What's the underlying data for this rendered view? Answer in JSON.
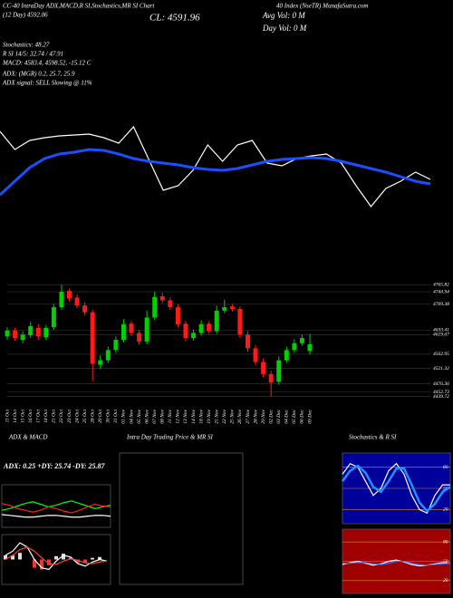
{
  "header": {
    "line1": "CC-40 IntraDay ADX,MACD,R SI,Stochastics,MR SI Chart",
    "source": "40 Index (NseTR) MunafaSutra.com",
    "close": "CL: 4591.96",
    "day": "(12 Day) 4592.06",
    "avg_vol": "Avg Vol: 0  M",
    "day_vol": "Day Vol: 0  M",
    "stoch": "Stochastics: 48.27",
    "rsi": "R SI 14/5: 32.74 / 47.91",
    "macd": "MACD: 4583.4, 4598.52, -15.12 C",
    "adx": "ADX:                (MGR) 0.2, 25.7, 25.9",
    "signal": "ADX  signal: SELL Slowing @ 11%"
  },
  "chart_data": [
    {
      "type": "line",
      "ylim": [
        0,
        130
      ],
      "series": [
        {
          "color": "#ffffff",
          "values": [
            105,
            85,
            95,
            98,
            100,
            101,
            102,
            98,
            92,
            110,
            75,
            40,
            45,
            62,
            90,
            72,
            90,
            95,
            70,
            67,
            75,
            78,
            80,
            70,
            45,
            22,
            42,
            50,
            60,
            52
          ]
        },
        {
          "color": "#1a4fff",
          "values": [
            35,
            50,
            65,
            75,
            80,
            82,
            85,
            84,
            80,
            75,
            72,
            70,
            68,
            65,
            63,
            62,
            64,
            68,
            72,
            74,
            75,
            76,
            75,
            72,
            68,
            64,
            60,
            55,
            50,
            47
          ]
        }
      ]
    },
    {
      "type": "candlestick",
      "up_color": "#00d000",
      "down_color": "#ff1a1a",
      "x": [
        "11 Oct",
        "14 Oct",
        "15 Oct",
        "16 Oct",
        "17 Oct",
        "18 Oct",
        "21 Oct",
        "22 Oct",
        "23 Oct",
        "24 Oct",
        "25 Oct",
        "28 Oct",
        "29 Oct",
        "30 Oct",
        "31 Oct",
        "01 Nov",
        "04 Nov",
        "05 Nov",
        "06 Nov",
        "07 Nov",
        "08 Nov",
        "11 Nov",
        "12 Nov",
        "13 Nov",
        "14 Nov",
        "18 Nov",
        "19 Nov",
        "21 Nov",
        "22 Nov",
        "25 Nov",
        "26 Nov",
        "27 Nov",
        "28 Nov",
        "29 Nov",
        "02 Dec",
        "03 Dec",
        "04 Dec",
        "05 Dec",
        "06 Dec",
        "09 Dec"
      ],
      "open": [
        4615,
        4632,
        4605,
        4618,
        4640,
        4612,
        4642,
        4700,
        4748,
        4728,
        4705,
        4685,
        4532,
        4545,
        4575,
        4605,
        4652,
        4625,
        4600,
        4670,
        4732,
        4720,
        4700,
        4652,
        4610,
        4625,
        4652,
        4630,
        4690,
        4702,
        4695,
        4620,
        4580,
        4540,
        4505,
        4482,
        4545,
        4575,
        4595,
        4572
      ],
      "high": [
        4642,
        4640,
        4630,
        4657,
        4650,
        4648,
        4710,
        4765,
        4754,
        4738,
        4715,
        4693,
        4560,
        4585,
        4615,
        4665,
        4660,
        4633,
        4690,
        4745,
        4742,
        4730,
        4708,
        4660,
        4635,
        4662,
        4660,
        4705,
        4722,
        4710,
        4703,
        4630,
        4590,
        4550,
        4515,
        4557,
        4585,
        4607,
        4620,
        4622
      ],
      "low": [
        4605,
        4602,
        4595,
        4610,
        4605,
        4604,
        4634,
        4692,
        4717,
        4697,
        4675,
        4485,
        4520,
        4537,
        4567,
        4597,
        4615,
        4590,
        4592,
        4662,
        4712,
        4692,
        4642,
        4600,
        4602,
        4617,
        4622,
        4622,
        4682,
        4687,
        4610,
        4570,
        4530,
        4495,
        4440,
        4474,
        4537,
        4567,
        4587,
        4562
      ],
      "close": [
        4632,
        4610,
        4620,
        4645,
        4615,
        4640,
        4700,
        4745,
        4725,
        4705,
        4685,
        4535,
        4545,
        4575,
        4605,
        4650,
        4625,
        4600,
        4670,
        4730,
        4720,
        4700,
        4650,
        4610,
        4625,
        4650,
        4630,
        4690,
        4700,
        4695,
        4620,
        4580,
        4540,
        4505,
        4480,
        4545,
        4575,
        4595,
        4610,
        4592
      ],
      "ylim": [
        4420,
        4790
      ],
      "yticks": [
        4765.82,
        4744.94,
        4709.38,
        4633.41,
        4619.67,
        4562.95,
        4521.32,
        4476.36,
        4452.73,
        4439.72
      ],
      "grid": true
    },
    {
      "type": "line",
      "title": "ADX  & MACD",
      "subtitle": "ADX: 0.25  +DY: 25.74  -DY: 25.87",
      "ylim": [
        0,
        50
      ],
      "series": [
        {
          "color": "#00ff00",
          "values": [
            20,
            22,
            25,
            28,
            30,
            27,
            24,
            26,
            29,
            31,
            28,
            25,
            22,
            24,
            26
          ]
        },
        {
          "color": "#ff2020",
          "values": [
            28,
            26,
            22,
            20,
            18,
            20,
            24,
            22,
            19,
            17,
            20,
            24,
            27,
            25,
            24
          ]
        },
        {
          "color": "#ffffff",
          "values": [
            15,
            14,
            13,
            12,
            12,
            13,
            14,
            14,
            13,
            12,
            12,
            13,
            14,
            14,
            13
          ]
        }
      ]
    },
    {
      "type": "macd",
      "ylim": [
        -30,
        30
      ],
      "series": [
        {
          "color": "#ffffff",
          "values": [
            5,
            10,
            20,
            15,
            0,
            -10,
            -12,
            -2,
            5,
            3,
            -5,
            -8,
            -3,
            0,
            -2
          ]
        },
        {
          "color": "#ff4040",
          "values": [
            0,
            5,
            12,
            15,
            10,
            2,
            -5,
            -6,
            -2,
            1,
            -1,
            -4,
            -5,
            -3,
            -2
          ]
        }
      ],
      "histogram": [
        5,
        5,
        8,
        0,
        -10,
        -12,
        -7,
        4,
        7,
        2,
        -4,
        -4,
        2,
        3,
        0
      ]
    },
    {
      "type": "line",
      "title": "Intra Day Trading Price  & MR          SI",
      "ylim": [
        0,
        100
      ],
      "series": []
    },
    {
      "type": "line",
      "title": "Stochastics & R          SI",
      "background": "#00009a",
      "ylim": [
        0,
        100
      ],
      "yticks": [
        20,
        50,
        80
      ],
      "series": [
        {
          "color": "#ffffff",
          "values": [
            70,
            85,
            80,
            60,
            40,
            50,
            75,
            85,
            70,
            40,
            20,
            15,
            40,
            55,
            55
          ]
        },
        {
          "color": "#1e90ff",
          "values": [
            60,
            75,
            82,
            72,
            52,
            45,
            60,
            78,
            78,
            55,
            30,
            18,
            28,
            45,
            52
          ]
        }
      ]
    },
    {
      "type": "line",
      "background": "#a00000",
      "ylim": [
        0,
        100
      ],
      "yticks": [
        20,
        50,
        80
      ],
      "series": [
        {
          "color": "#ffffff",
          "values": [
            45,
            48,
            50,
            47,
            44,
            46,
            50,
            52,
            49,
            45,
            43,
            44,
            46,
            48,
            47
          ]
        },
        {
          "color": "#3a6cff",
          "values": [
            47,
            47,
            48,
            48,
            46,
            45,
            47,
            50,
            50,
            47,
            45,
            44,
            45,
            46,
            47
          ]
        }
      ]
    }
  ]
}
